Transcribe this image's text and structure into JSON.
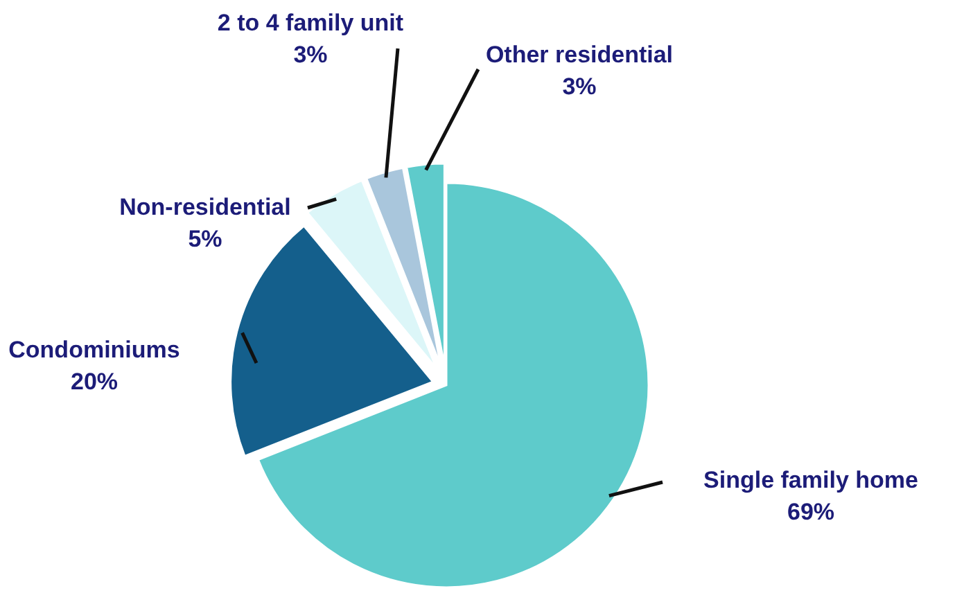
{
  "chart_data": {
    "type": "pie",
    "categories": [
      "Single family home",
      "Condominiums",
      "Non-residential",
      "2 to 4 family unit",
      "Other residential"
    ],
    "values": [
      69,
      20,
      5,
      3,
      3
    ],
    "colors": [
      "#5ecbcb",
      "#145f8c",
      "#dcf6f8",
      "#a9c6dc",
      "#5ecbcb"
    ],
    "value_labels": [
      "69%",
      "20%",
      "5%",
      "3%",
      "3%"
    ]
  }
}
